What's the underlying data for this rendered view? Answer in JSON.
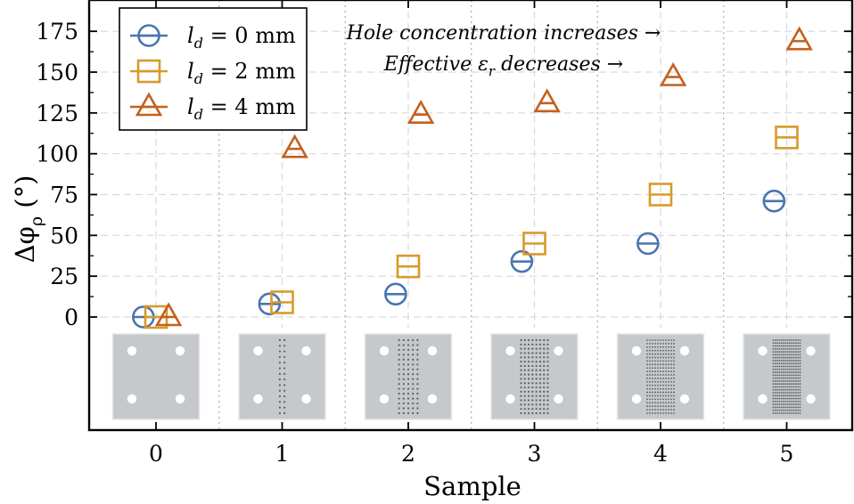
{
  "chart_data": {
    "type": "scatter",
    "title": "",
    "xlabel": "Sample",
    "ylabel": "Δφ_ρ (°)",
    "ylabel_parts": {
      "symbol": "Δφ",
      "sub": "ρ",
      "unit": " (°)"
    },
    "xlim": [
      -0.5,
      5.5
    ],
    "ylim_data": [
      0,
      175
    ],
    "x_ticks": [
      "0",
      "1",
      "2",
      "3",
      "4",
      "5"
    ],
    "y_ticks": [
      "0",
      "25",
      "50",
      "75",
      "100",
      "125",
      "150",
      "175"
    ],
    "grid": true,
    "legend_position": "top-left",
    "series": [
      {
        "name": "l_d = 0 mm",
        "label_parts": {
          "base": "l",
          "sub": "d",
          "rest": " = 0 mm"
        },
        "marker": "circle",
        "color": "#4a74b0",
        "x_offset": -0.1,
        "values": [
          0,
          8,
          14,
          34,
          45,
          71
        ]
      },
      {
        "name": "l_d = 2 mm",
        "label_parts": {
          "base": "l",
          "sub": "d",
          "rest": " = 2 mm"
        },
        "marker": "square",
        "color": "#d89a2b",
        "x_offset": 0.0,
        "values": [
          0,
          9,
          31,
          45,
          75,
          110
        ]
      },
      {
        "name": "l_d = 4 mm",
        "label_parts": {
          "base": "l",
          "sub": "d",
          "rest": " = 4 mm"
        },
        "marker": "triangle",
        "color": "#c4601e",
        "x_offset": 0.1,
        "values": [
          0,
          103,
          124,
          131,
          147,
          169
        ]
      }
    ],
    "annotations": [
      "Hole concentration increases →",
      {
        "prefix": "Effective ε",
        "sub": "r",
        "suffix": " decreases →"
      }
    ],
    "sample_images": [
      {
        "sample": 0,
        "hole_rows": 0,
        "hole_cols": 0
      },
      {
        "sample": 1,
        "hole_rows": 14,
        "hole_cols": 2
      },
      {
        "sample": 2,
        "hole_rows": 16,
        "hole_cols": 5
      },
      {
        "sample": 3,
        "hole_rows": 18,
        "hole_cols": 8
      },
      {
        "sample": 4,
        "hole_rows": 22,
        "hole_cols": 11
      },
      {
        "sample": 5,
        "hole_rows": 26,
        "hole_cols": 14
      }
    ]
  }
}
